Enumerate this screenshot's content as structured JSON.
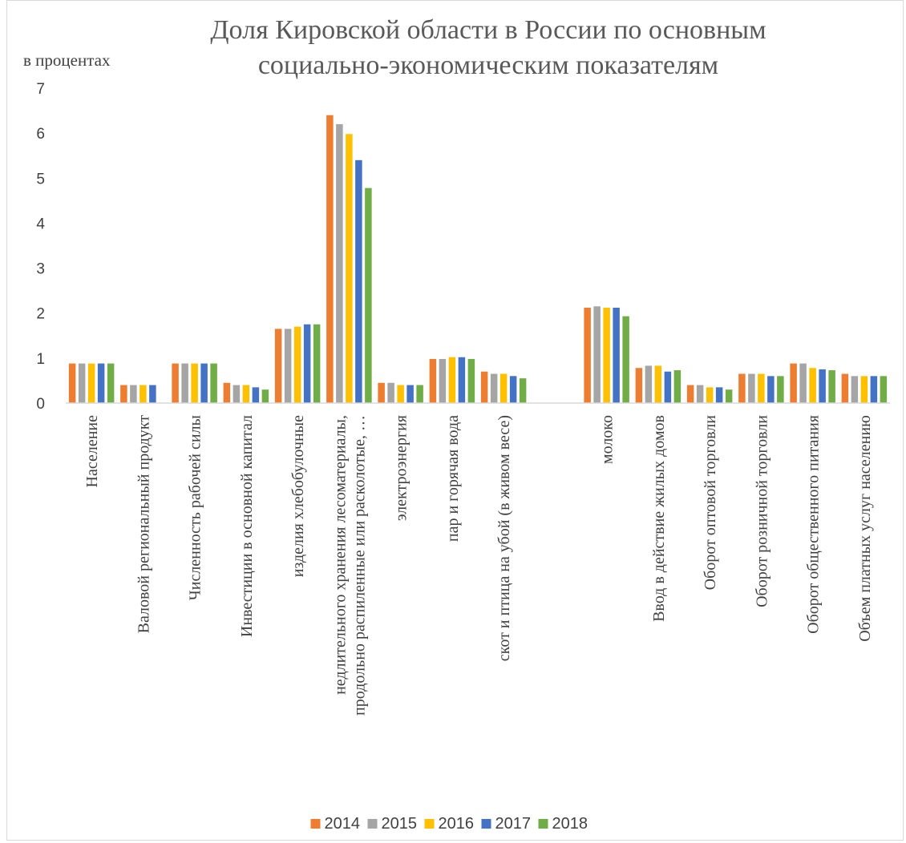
{
  "chart_data": {
    "type": "bar",
    "title_lines": [
      "Доля Кировской области в России по основным",
      "социально-экономическим показателям"
    ],
    "ylabel": "в процентах",
    "xlabel": "",
    "ylim": [
      0,
      7
    ],
    "yticks": [
      "0",
      "1",
      "2",
      "3",
      "4",
      "5",
      "6",
      "7"
    ],
    "grid": false,
    "legend_position": "bottom",
    "categories": [
      [
        "Население"
      ],
      [
        "Валовой региональный продукт"
      ],
      [
        "Численность рабочей силы"
      ],
      [
        "Инвестиции в основной капитал"
      ],
      [
        "изделия хлебобулочные"
      ],
      [
        "недлительного хранения лесоматериалы,",
        "продольно распиленные или расколотые, …"
      ],
      [
        "электроэнергия"
      ],
      [
        "пар и горячая вода"
      ],
      [
        "скот и птица на убой (в живом весе)"
      ],
      [
        ""
      ],
      [
        "молоко"
      ],
      [
        "Ввод в действие жилых домов"
      ],
      [
        "Оборот оптовой торговли"
      ],
      [
        "Оборот розничной торговли"
      ],
      [
        "Оборот общественного питания"
      ],
      [
        "Объем платных услуг населению"
      ]
    ],
    "series": [
      {
        "name": "2014",
        "color": "#ED7D31",
        "values": [
          0.88,
          0.4,
          0.88,
          0.45,
          1.65,
          6.4,
          0.45,
          0.98,
          0.7,
          null,
          2.12,
          0.78,
          0.4,
          0.65,
          0.88,
          0.65
        ]
      },
      {
        "name": "2015",
        "color": "#A5A5A5",
        "values": [
          0.88,
          0.4,
          0.88,
          0.4,
          1.65,
          6.2,
          0.45,
          0.98,
          0.65,
          null,
          2.15,
          0.83,
          0.4,
          0.65,
          0.88,
          0.6
        ]
      },
      {
        "name": "2016",
        "color": "#FFC000",
        "values": [
          0.88,
          0.4,
          0.88,
          0.4,
          1.7,
          5.98,
          0.4,
          1.02,
          0.65,
          null,
          2.12,
          0.83,
          0.35,
          0.65,
          0.78,
          0.6
        ]
      },
      {
        "name": "2017",
        "color": "#4472C4",
        "values": [
          0.88,
          0.4,
          0.88,
          0.35,
          1.75,
          5.4,
          0.4,
          1.02,
          0.6,
          null,
          2.12,
          0.7,
          0.35,
          0.6,
          0.75,
          0.6
        ]
      },
      {
        "name": "2018",
        "color": "#70AD47",
        "values": [
          0.88,
          null,
          0.88,
          0.3,
          1.75,
          4.78,
          0.4,
          0.98,
          0.55,
          null,
          1.93,
          0.73,
          0.3,
          0.6,
          0.73,
          0.6
        ]
      }
    ]
  }
}
